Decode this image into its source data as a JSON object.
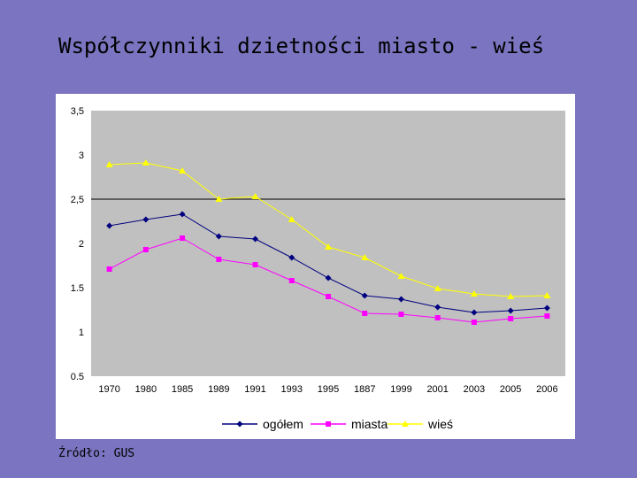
{
  "slide": {
    "title": "Współczynniki dzietności miasto - wieś",
    "source": "Źródło: GUS"
  },
  "colors": {
    "background": "#7b74c0",
    "plot_area": "#c0c0c0",
    "ogolem": "#000080",
    "miasta": "#ff00ff",
    "wies": "#ffff00"
  },
  "chart_data": {
    "type": "line",
    "categories": [
      "1970",
      "1980",
      "1985",
      "1989",
      "1991",
      "1993",
      "1995",
      "1887",
      "1999",
      "2001",
      "2003",
      "2005",
      "2006"
    ],
    "y_tick_labels": [
      "3,5",
      "3",
      "2,5",
      "2",
      "1.5",
      "1",
      "0.5"
    ],
    "ylim": [
      0.5,
      3.5
    ],
    "reference_line": 2.5,
    "grid": false,
    "legend_position": "bottom",
    "series": [
      {
        "name": "ogółem",
        "color": "#000080",
        "marker": "diamond",
        "values": [
          2.2,
          2.27,
          2.33,
          2.08,
          2.05,
          1.84,
          1.61,
          1.41,
          1.37,
          1.28,
          1.22,
          1.24,
          1.27
        ]
      },
      {
        "name": "miasta",
        "color": "#ff00ff",
        "marker": "square",
        "values": [
          1.71,
          1.93,
          2.06,
          1.82,
          1.76,
          1.58,
          1.4,
          1.21,
          1.2,
          1.16,
          1.11,
          1.15,
          1.18
        ]
      },
      {
        "name": "wieś",
        "color": "#ffff00",
        "marker": "triangle",
        "values": [
          2.89,
          2.91,
          2.82,
          2.5,
          2.53,
          2.27,
          1.96,
          1.84,
          1.63,
          1.49,
          1.43,
          1.4,
          1.41
        ]
      }
    ]
  }
}
